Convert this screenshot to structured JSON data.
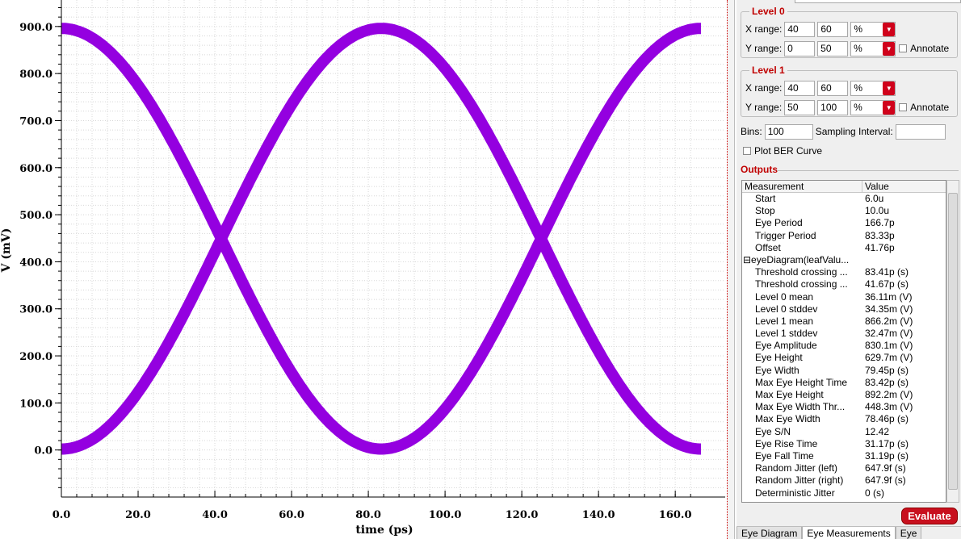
{
  "chart_data": {
    "type": "line",
    "title": "",
    "xlabel": "time (ps)",
    "ylabel": "V (mV)",
    "x_ticks": [
      0,
      20,
      40,
      60,
      80,
      100,
      120,
      140,
      160
    ],
    "x_tick_labels": [
      "0.0",
      "20.0",
      "40.0",
      "60.0",
      "80.0",
      "100.0",
      "120.0",
      "140.0",
      "160.0"
    ],
    "y_ticks": [
      0,
      100,
      200,
      300,
      400,
      500,
      600,
      700,
      800,
      900
    ],
    "y_tick_labels": [
      "0.0",
      "100.0",
      "200.0",
      "300.0",
      "400.0",
      "500.0",
      "600.0",
      "700.0",
      "800.0",
      "900.0"
    ],
    "xlim": [
      0,
      166.7
    ],
    "ylim": [
      -100,
      970
    ],
    "grid": true,
    "series": [
      {
        "x": [
          0,
          20.8,
          41.7,
          62.5,
          83.3,
          104.2,
          125,
          145.8,
          166.7
        ],
        "values": [
          895,
          765,
          448,
          132,
          3,
          132,
          448,
          765,
          895
        ]
      },
      {
        "x": [
          0,
          20.8,
          41.7,
          62.5,
          83.3,
          104.2,
          125,
          145.8,
          166.7
        ],
        "values": [
          3,
          132,
          448,
          765,
          895,
          765,
          448,
          132,
          3
        ]
      }
    ],
    "trace_color": "#9400e0"
  },
  "level0": {
    "title": "Level 0",
    "x_label": "X range:",
    "x_min": "40",
    "x_max": "60",
    "x_unit": "%",
    "y_label": "Y range:",
    "y_min": "0",
    "y_max": "50",
    "y_unit": "%",
    "annotate_label": "Annotate"
  },
  "level1": {
    "title": "Level 1",
    "x_label": "X range:",
    "x_min": "40",
    "x_max": "60",
    "x_unit": "%",
    "y_label": "Y range:",
    "y_min": "50",
    "y_max": "100",
    "y_unit": "%",
    "annotate_label": "Annotate"
  },
  "bins": {
    "label": "Bins:",
    "value": "100",
    "sampling_label": "Sampling Interval:",
    "sampling_value": ""
  },
  "plot_ber": {
    "label": "Plot BER Curve"
  },
  "outputs": {
    "title": "Outputs",
    "col_measurement": "Measurement",
    "col_value": "Value",
    "rows": [
      {
        "name": "Start",
        "value": "6.0u",
        "indent": true
      },
      {
        "name": "Stop",
        "value": "10.0u",
        "indent": true
      },
      {
        "name": "Eye Period",
        "value": "166.7p",
        "indent": true
      },
      {
        "name": "Trigger Period",
        "value": "83.33p",
        "indent": true
      },
      {
        "name": "Offset",
        "value": "41.76p",
        "indent": true
      },
      {
        "name": "⊟eyeDiagram(leafValu...",
        "value": "",
        "indent": false
      },
      {
        "name": "Threshold crossing ...",
        "value": "83.41p (s)",
        "indent": true
      },
      {
        "name": "Threshold crossing ...",
        "value": "41.67p (s)",
        "indent": true
      },
      {
        "name": "Level 0 mean",
        "value": "36.11m (V)",
        "indent": true
      },
      {
        "name": "Level 0 stddev",
        "value": "34.35m (V)",
        "indent": true
      },
      {
        "name": "Level 1 mean",
        "value": "866.2m (V)",
        "indent": true
      },
      {
        "name": "Level 1 stddev",
        "value": "32.47m (V)",
        "indent": true
      },
      {
        "name": "Eye Amplitude",
        "value": "830.1m (V)",
        "indent": true
      },
      {
        "name": "Eye Height",
        "value": "629.7m (V)",
        "indent": true
      },
      {
        "name": "Eye Width",
        "value": "79.45p (s)",
        "indent": true
      },
      {
        "name": "Max Eye Height Time",
        "value": "83.42p (s)",
        "indent": true
      },
      {
        "name": "Max Eye Height",
        "value": "892.2m (V)",
        "indent": true
      },
      {
        "name": "Max Eye Width Thr...",
        "value": "448.3m (V)",
        "indent": true
      },
      {
        "name": "Max Eye Width",
        "value": "78.46p (s)",
        "indent": true
      },
      {
        "name": "Eye S/N",
        "value": "12.42",
        "indent": true
      },
      {
        "name": "Eye Rise Time",
        "value": "31.17p (s)",
        "indent": true
      },
      {
        "name": "Eye Fall Time",
        "value": "31.19p (s)",
        "indent": true
      },
      {
        "name": "Random Jitter (left)",
        "value": "647.9f (s)",
        "indent": true
      },
      {
        "name": "Random Jitter (right)",
        "value": "647.9f (s)",
        "indent": true
      },
      {
        "name": "Deterministic Jitter",
        "value": "0 (s)",
        "indent": true
      }
    ]
  },
  "evaluate_label": "Evaluate",
  "tabs": [
    "Eye Diagram",
    "Eye Measurements",
    "Eye"
  ]
}
